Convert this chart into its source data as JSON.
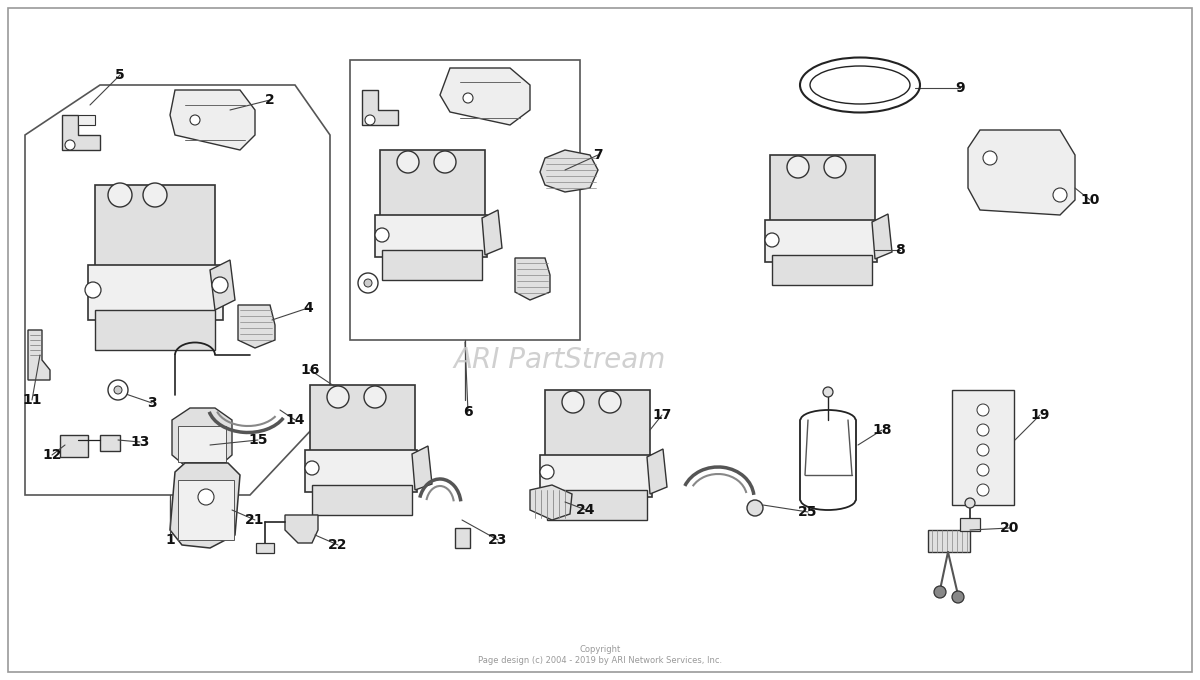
{
  "bg_color": "#ffffff",
  "border_color": "#999999",
  "border_lw": 1.2,
  "watermark_text": "ARI PartStream",
  "watermark_color": "#c8c8c8",
  "watermark_fontsize": 20,
  "copyright_text": "Copyright\nPage design (c) 2004 - 2019 by ARI Network Services, Inc.",
  "copyright_fontsize": 6,
  "copyright_color": "#999999",
  "label_fontsize": 10,
  "label_color": "#111111",
  "line_color": "#222222",
  "part_fill": "#f0f0f0",
  "part_fill2": "#e0e0e0",
  "part_edge": "#333333"
}
